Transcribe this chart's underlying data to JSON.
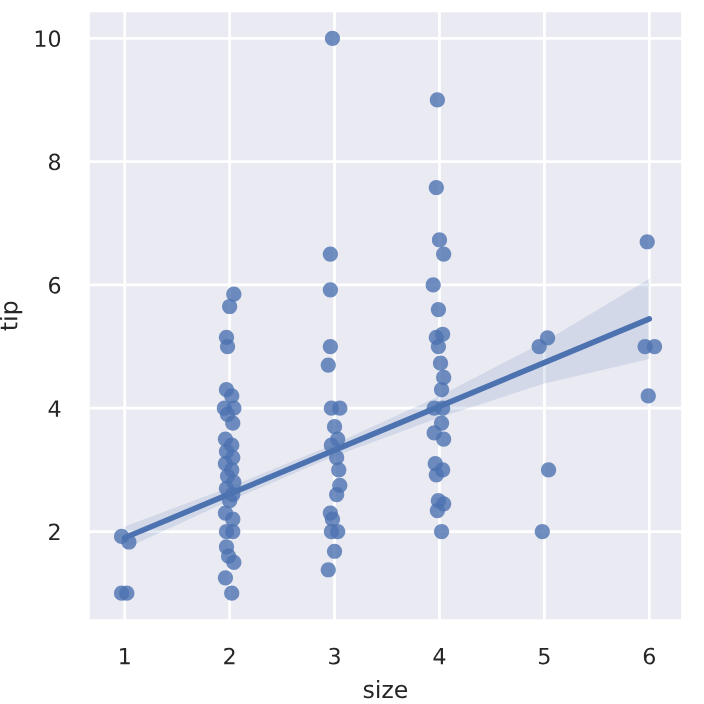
{
  "chart_data": {
    "type": "scatter",
    "xlabel": "size",
    "ylabel": "tip",
    "xlim": [
      0.65,
      6.32
    ],
    "ylim": [
      0.55,
      10.45
    ],
    "xticks": [
      1,
      2,
      3,
      4,
      5,
      6
    ],
    "yticks": [
      2,
      4,
      6,
      8,
      10
    ],
    "grid": true,
    "series": [
      {
        "color": "#4c72b0",
        "marker": "circle",
        "x": [
          0.97,
          1.04,
          0.97,
          1.02,
          2.04,
          2.0,
          1.97,
          1.98,
          1.97,
          2.02,
          1.95,
          2.04,
          1.98,
          2.03,
          1.96,
          2.02,
          1.97,
          2.03,
          1.96,
          2.02,
          1.98,
          2.04,
          1.97,
          2.03,
          2.0,
          1.96,
          2.03,
          1.97,
          2.03,
          1.97,
          1.99,
          2.04,
          1.96,
          2.02,
          2.98,
          2.96,
          2.96,
          2.96,
          2.94,
          2.97,
          3.05,
          3.0,
          3.03,
          2.97,
          3.02,
          3.04,
          3.05,
          3.02,
          2.96,
          2.98,
          3.03,
          2.97,
          3.0,
          2.94,
          3.98,
          3.97,
          4.0,
          4.04,
          3.94,
          3.99,
          4.03,
          3.97,
          3.99,
          4.01,
          4.04,
          4.02,
          3.95,
          4.03,
          4.02,
          3.95,
          4.04,
          3.96,
          4.03,
          3.97,
          3.99,
          4.04,
          3.98,
          4.02,
          4.95,
          5.03,
          5.04,
          4.98,
          5.98,
          5.96,
          6.05,
          5.99
        ],
        "values": [
          1.92,
          1.83,
          1.0,
          1.0,
          5.85,
          5.65,
          5.15,
          5.0,
          4.3,
          4.2,
          4.0,
          4.0,
          3.9,
          3.76,
          3.5,
          3.4,
          3.3,
          3.2,
          3.1,
          3.0,
          2.9,
          2.8,
          2.7,
          2.6,
          2.5,
          2.3,
          2.2,
          2.0,
          2.0,
          1.75,
          1.6,
          1.5,
          1.25,
          1.0,
          10.0,
          6.5,
          5.92,
          5.0,
          4.7,
          4.0,
          4.0,
          3.7,
          3.5,
          3.4,
          3.2,
          3.0,
          2.75,
          2.6,
          2.3,
          2.2,
          2.0,
          2.0,
          1.68,
          1.38,
          9.0,
          7.58,
          6.73,
          6.5,
          6.0,
          5.6,
          5.2,
          5.15,
          5.0,
          4.73,
          4.5,
          4.3,
          4.0,
          4.0,
          3.76,
          3.6,
          3.5,
          3.1,
          3.0,
          2.92,
          2.5,
          2.45,
          2.34,
          2.0,
          5.0,
          5.14,
          3.0,
          2.0,
          6.7,
          5.0,
          5.0,
          4.2
        ]
      },
      {
        "type": "line",
        "color": "#4c72b0",
        "x": [
          1,
          2,
          3,
          4,
          5,
          6
        ],
        "values": [
          1.9,
          2.61,
          3.32,
          4.03,
          4.74,
          5.45
        ],
        "lower": [
          1.72,
          2.5,
          3.22,
          3.85,
          4.4,
          4.8
        ],
        "upper": [
          2.08,
          2.72,
          3.42,
          4.2,
          5.08,
          6.1
        ]
      }
    ]
  }
}
